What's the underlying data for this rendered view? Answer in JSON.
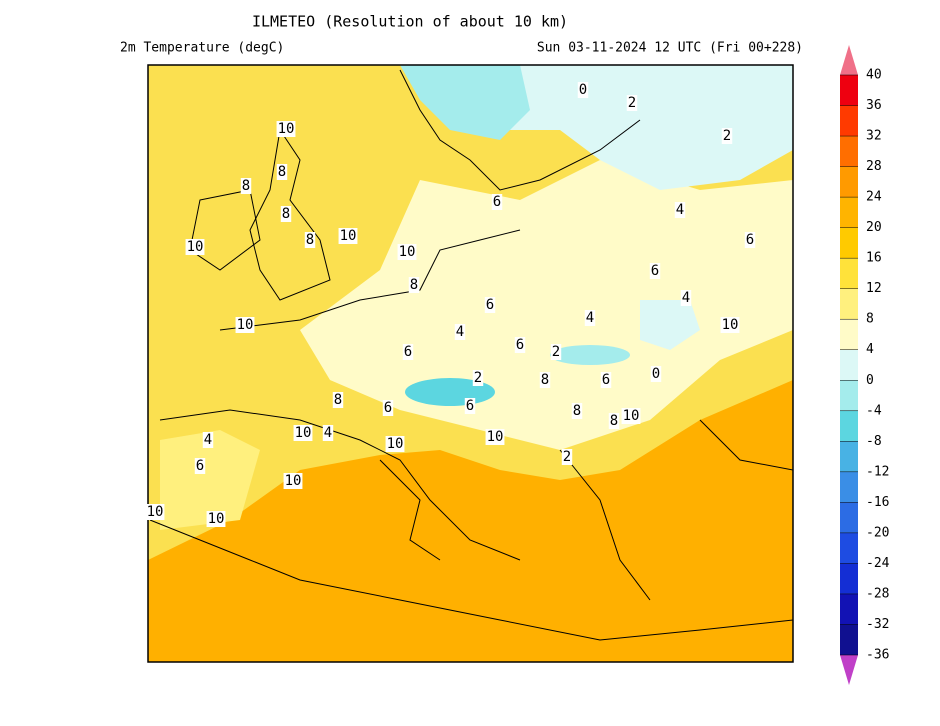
{
  "header": {
    "title": "ILMETEO (Resolution of about 10 km)",
    "left": "2m Temperature (degC)",
    "right": "Sun 03-11-2024 12 UTC (Fri 00+228)"
  },
  "colorbar": {
    "ticks": [
      40,
      36,
      32,
      28,
      24,
      20,
      16,
      12,
      8,
      4,
      0,
      -4,
      -8,
      -12,
      -16,
      -20,
      -24,
      -28,
      -32,
      -36
    ],
    "colors": [
      "#ee0010",
      "#ff3a00",
      "#ff6e00",
      "#ff9a00",
      "#ffb400",
      "#ffca00",
      "#ffe23a",
      "#fff07e",
      "#fffbc8",
      "#dcf8f6",
      "#a4ecec",
      "#5cd6e0",
      "#48b2e4",
      "#3a8ee6",
      "#2c6ce4",
      "#1e4ce2",
      "#142ed4",
      "#1212b4",
      "#101090"
    ],
    "over_color": "#f07088",
    "under_color": "#c040c8"
  },
  "contour_labels": [
    "10",
    "8",
    "8",
    "8",
    "8",
    "10",
    "10",
    "10",
    "8",
    "10",
    "6",
    "4",
    "6",
    "6",
    "4",
    "8",
    "8",
    "6",
    "2",
    "6",
    "10",
    "10",
    "4",
    "6",
    "2",
    "8",
    "10",
    "8",
    "6",
    "10",
    "6",
    "4",
    "4",
    "6",
    "0",
    "2",
    "2",
    "0",
    "2",
    "10",
    "10",
    "10",
    "10",
    "6",
    "4"
  ]
}
